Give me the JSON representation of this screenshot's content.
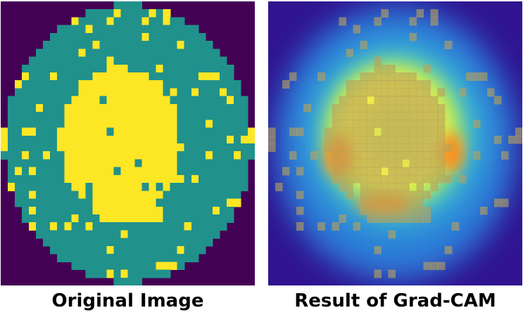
{
  "captions": {
    "left": "Original Image",
    "right": "Result of Grad-CAM"
  },
  "colors": {
    "background": "#440154",
    "wafer": "#21918c",
    "defect": "#fde725",
    "heatmap_low": "#30148f",
    "heatmap_mid_blue": "#2f6fd6",
    "heatmap_cyan": "#3fc3d6",
    "heatmap_green": "#a8e85a",
    "heatmap_yellow": "#f7f04a",
    "heatmap_orange": "#ff8a1a",
    "heatmap_defect_overlay": "#b8a15a"
  },
  "icons": {
    "left_panel": "wafer-map-image",
    "right_panel": "grad-cam-heatmap-image"
  }
}
